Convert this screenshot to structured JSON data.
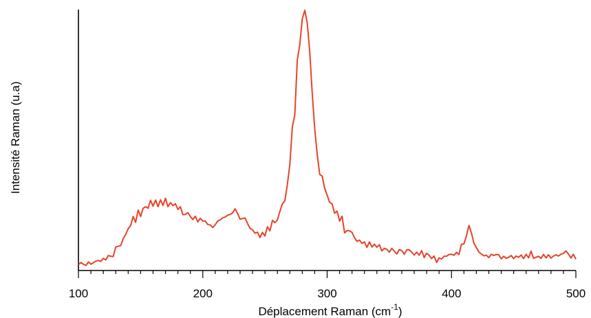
{
  "chart_data": {
    "type": "line",
    "title": "",
    "xlabel": "Déplacement Raman (cm",
    "xlabel_sup": "-1",
    "xlabel_end": ")",
    "ylabel": "Intensité Raman (u.a)",
    "xlim": [
      100,
      500
    ],
    "ylim": [
      0,
      100
    ],
    "x_ticks": [
      100,
      200,
      300,
      400,
      500
    ],
    "x_minor_step": 10,
    "y_ticks_shown": false,
    "grid": false,
    "legend": "none",
    "series": [
      {
        "color": "#e8412a",
        "points": [
          [
            100,
            0.9
          ],
          [
            102,
            1.8
          ],
          [
            104,
            1.1
          ],
          [
            106,
            0.6
          ],
          [
            108,
            2.0
          ],
          [
            110,
            1.1
          ],
          [
            112,
            1.7
          ],
          [
            114,
            2.3
          ],
          [
            116,
            2.6
          ],
          [
            118,
            2.2
          ],
          [
            120,
            3.4
          ],
          [
            122,
            2.8
          ],
          [
            124,
            4.5
          ],
          [
            126,
            4.2
          ],
          [
            128,
            4.1
          ],
          [
            130,
            7.8
          ],
          [
            132,
            8.1
          ],
          [
            134,
            8.4
          ],
          [
            136,
            11.1
          ],
          [
            138,
            12.7
          ],
          [
            140,
            14.9
          ],
          [
            142,
            16.2
          ],
          [
            144,
            19.7
          ],
          [
            146,
            17.4
          ],
          [
            148,
            22.2
          ],
          [
            150,
            19.7
          ],
          [
            152,
            22.9
          ],
          [
            154,
            23.5
          ],
          [
            156,
            22.9
          ],
          [
            158,
            26.0
          ],
          [
            160,
            23.7
          ],
          [
            162,
            26.1
          ],
          [
            164,
            23.5
          ],
          [
            166,
            26.2
          ],
          [
            168,
            24.0
          ],
          [
            170,
            26.8
          ],
          [
            172,
            23.5
          ],
          [
            174,
            25.1
          ],
          [
            176,
            23.9
          ],
          [
            178,
            24.7
          ],
          [
            180,
            22.4
          ],
          [
            182,
            23.5
          ],
          [
            184,
            20.4
          ],
          [
            186,
            20.5
          ],
          [
            188,
            21.2
          ],
          [
            190,
            19.7
          ],
          [
            192,
            18.5
          ],
          [
            194,
            19.8
          ],
          [
            196,
            17.6
          ],
          [
            198,
            19.0
          ],
          [
            200,
            17.9
          ],
          [
            202,
            17.9
          ],
          [
            204,
            16.6
          ],
          [
            206,
            16.4
          ],
          [
            208,
            15.4
          ],
          [
            210,
            16.5
          ],
          [
            212,
            17.9
          ],
          [
            214,
            18.4
          ],
          [
            216,
            19.2
          ],
          [
            218,
            19.5
          ],
          [
            220,
            20.2
          ],
          [
            222,
            20.5
          ],
          [
            224,
            21.1
          ],
          [
            226,
            22.7
          ],
          [
            228,
            20.8
          ],
          [
            230,
            18.6
          ],
          [
            232,
            18.9
          ],
          [
            234,
            19.1
          ],
          [
            236,
            17.0
          ],
          [
            238,
            15.1
          ],
          [
            240,
            14.5
          ],
          [
            242,
            13.2
          ],
          [
            244,
            13.6
          ],
          [
            246,
            11.5
          ],
          [
            248,
            13.5
          ],
          [
            250,
            12.1
          ],
          [
            252,
            15.7
          ],
          [
            254,
            14.1
          ],
          [
            256,
            18.2
          ],
          [
            258,
            17.3
          ],
          [
            260,
            18.4
          ],
          [
            262,
            21.7
          ],
          [
            264,
            24.6
          ],
          [
            266,
            25.8
          ],
          [
            268,
            32.2
          ],
          [
            270,
            40.0
          ],
          [
            272,
            54.6
          ],
          [
            274,
            59.3
          ],
          [
            276,
            80.7
          ],
          [
            278,
            86.5
          ],
          [
            280,
            96.8
          ],
          [
            282,
            100.0
          ],
          [
            284,
            95.1
          ],
          [
            286,
            83.9
          ],
          [
            288,
            67.7
          ],
          [
            290,
            54.1
          ],
          [
            292,
            44.0
          ],
          [
            294,
            36.1
          ],
          [
            296,
            35.4
          ],
          [
            298,
            30.7
          ],
          [
            300,
            28.0
          ],
          [
            302,
            25.2
          ],
          [
            304,
            24.6
          ],
          [
            306,
            21.0
          ],
          [
            308,
            21.8
          ],
          [
            310,
            17.9
          ],
          [
            312,
            19.8
          ],
          [
            314,
            13.3
          ],
          [
            316,
            14.2
          ],
          [
            318,
            14.1
          ],
          [
            320,
            13.5
          ],
          [
            322,
            11.4
          ],
          [
            324,
            10.0
          ],
          [
            326,
            10.5
          ],
          [
            328,
            9.2
          ],
          [
            330,
            9.8
          ],
          [
            332,
            7.7
          ],
          [
            334,
            9.8
          ],
          [
            336,
            7.8
          ],
          [
            338,
            8.9
          ],
          [
            340,
            7.7
          ],
          [
            342,
            8.7
          ],
          [
            344,
            6.3
          ],
          [
            346,
            7.3
          ],
          [
            348,
            6.9
          ],
          [
            350,
            5.8
          ],
          [
            352,
            7.3
          ],
          [
            354,
            6.2
          ],
          [
            356,
            5.1
          ],
          [
            358,
            6.8
          ],
          [
            360,
            6.4
          ],
          [
            362,
            5.0
          ],
          [
            364,
            6.7
          ],
          [
            366,
            6.7
          ],
          [
            368,
            5.8
          ],
          [
            370,
            4.7
          ],
          [
            372,
            5.8
          ],
          [
            374,
            4.6
          ],
          [
            376,
            6.4
          ],
          [
            378,
            3.7
          ],
          [
            380,
            5.4
          ],
          [
            382,
            4.6
          ],
          [
            384,
            3.3
          ],
          [
            386,
            4.3
          ],
          [
            388,
            1.8
          ],
          [
            390,
            3.6
          ],
          [
            392,
            3.1
          ],
          [
            394,
            4.2
          ],
          [
            396,
            4.2
          ],
          [
            398,
            4.9
          ],
          [
            400,
            5.0
          ],
          [
            402,
            4.6
          ],
          [
            404,
            5.7
          ],
          [
            406,
            4.9
          ],
          [
            408,
            8.9
          ],
          [
            410,
            9.0
          ],
          [
            412,
            12.2
          ],
          [
            414,
            16.2
          ],
          [
            416,
            13.3
          ],
          [
            418,
            9.3
          ],
          [
            420,
            7.6
          ],
          [
            422,
            5.9
          ],
          [
            424,
            5.1
          ],
          [
            426,
            4.4
          ],
          [
            428,
            4.6
          ],
          [
            430,
            3.7
          ],
          [
            432,
            5.0
          ],
          [
            434,
            4.5
          ],
          [
            436,
            4.9
          ],
          [
            438,
            4.8
          ],
          [
            440,
            3.2
          ],
          [
            442,
            4.2
          ],
          [
            444,
            3.4
          ],
          [
            446,
            3.8
          ],
          [
            448,
            4.5
          ],
          [
            450,
            3.3
          ],
          [
            452,
            4.3
          ],
          [
            454,
            3.8
          ],
          [
            456,
            4.7
          ],
          [
            458,
            3.3
          ],
          [
            460,
            5.0
          ],
          [
            462,
            3.6
          ],
          [
            464,
            6.2
          ],
          [
            466,
            3.4
          ],
          [
            468,
            3.8
          ],
          [
            470,
            4.2
          ],
          [
            472,
            3.4
          ],
          [
            474,
            4.9
          ],
          [
            476,
            3.6
          ],
          [
            478,
            4.8
          ],
          [
            480,
            3.5
          ],
          [
            482,
            4.3
          ],
          [
            484,
            4.8
          ],
          [
            486,
            4.3
          ],
          [
            488,
            5.0
          ],
          [
            490,
            5.3
          ],
          [
            492,
            6.3
          ],
          [
            494,
            5.1
          ],
          [
            496,
            3.5
          ],
          [
            498,
            5.0
          ],
          [
            500,
            3.1
          ]
        ]
      }
    ]
  }
}
